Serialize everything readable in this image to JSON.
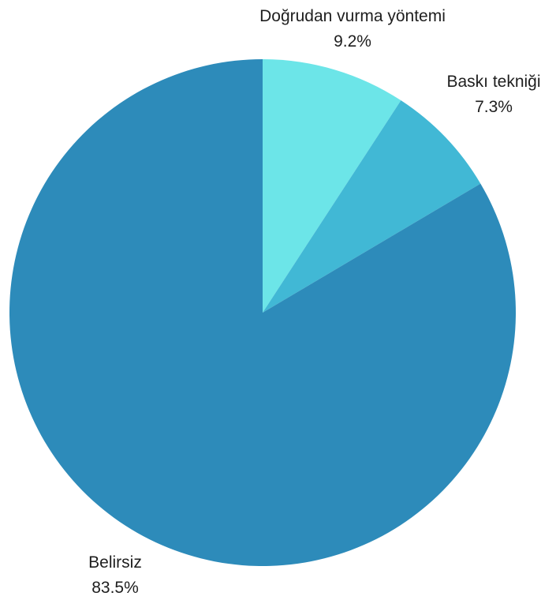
{
  "chart_data": {
    "type": "pie",
    "title": "",
    "slices": [
      {
        "label": "Doğrudan vurma yöntemi",
        "value": 9.2,
        "value_label": "9.2%",
        "color": "#6ce5e8"
      },
      {
        "label": "Baskı tekniği",
        "value": 7.3,
        "value_label": "7.3%",
        "color": "#41b8d5"
      },
      {
        "label": "Belirsiz",
        "value": 83.5,
        "value_label": "83.5%",
        "color": "#2d8bba"
      }
    ],
    "start_angle": "12 o'clock",
    "direction": "clockwise",
    "legend": "none",
    "labels": "outside, label above percentage"
  }
}
